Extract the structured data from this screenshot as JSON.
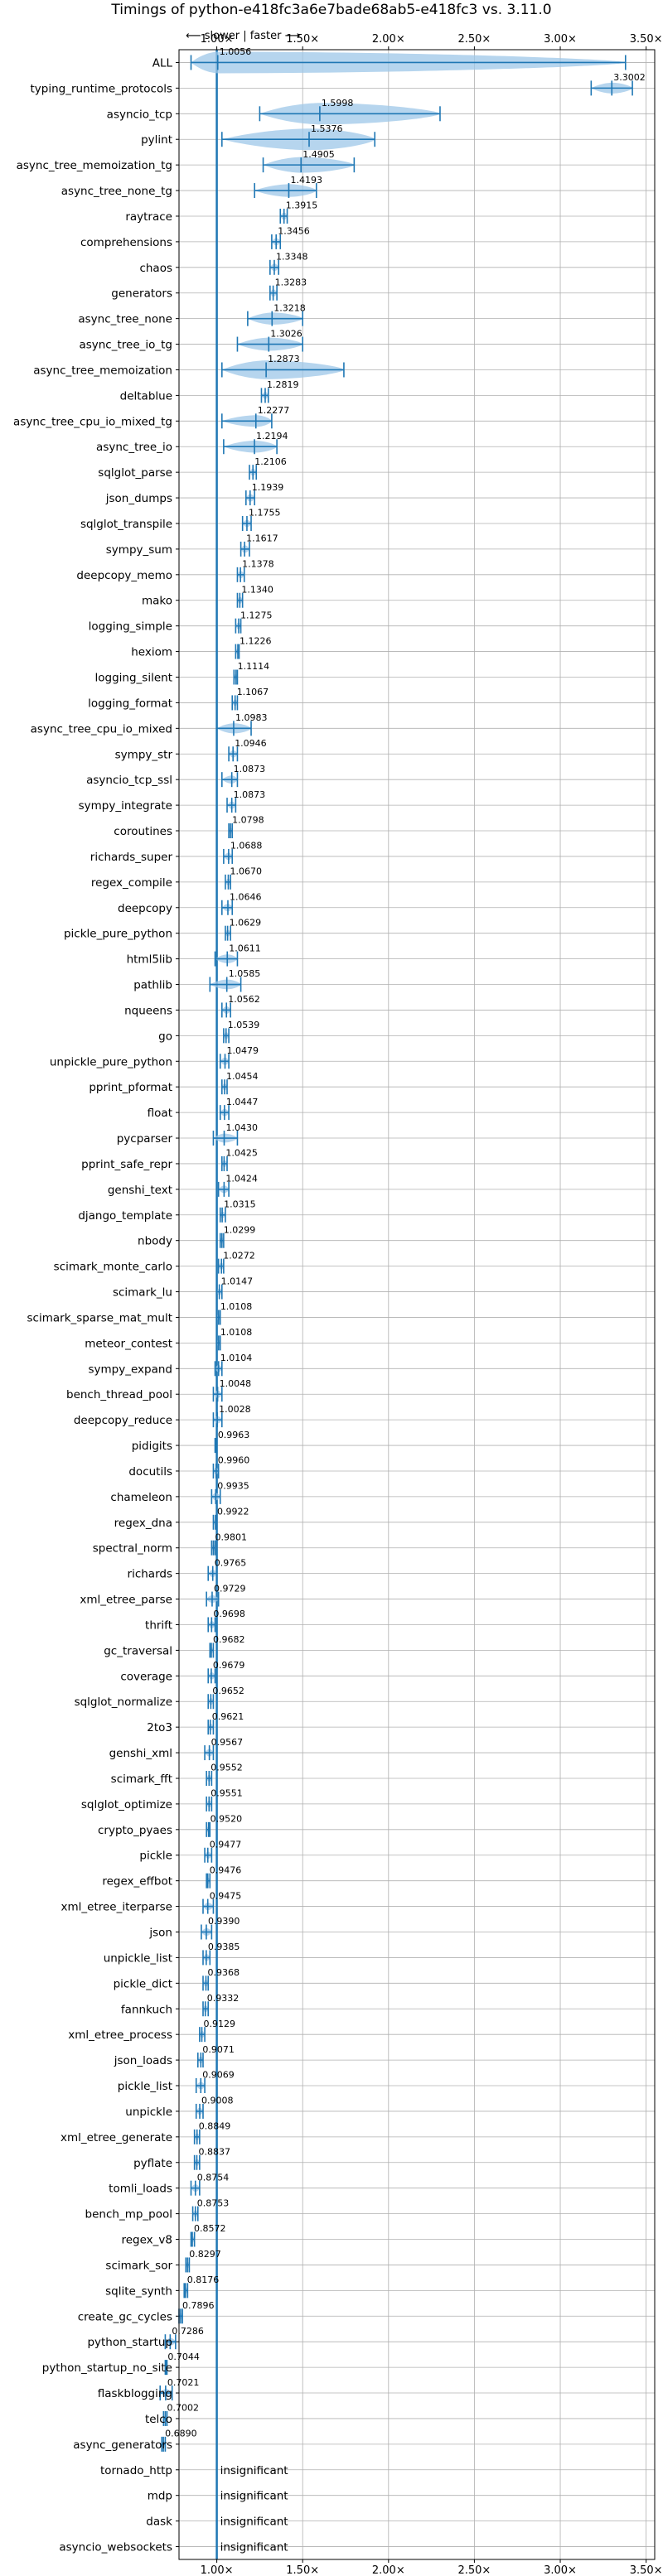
{
  "chart_data": {
    "type": "violin",
    "title": "Timings of python-e418fc3a6e7bade68ab5-e418fc3 vs. 3.11.0",
    "direction_hint": "⟵ slower | faster ⟶",
    "xlim": [
      0.78,
      3.55
    ],
    "x_ticks": [
      {
        "value": 1.0,
        "label": "1.00×"
      },
      {
        "value": 1.5,
        "label": "1.50×"
      },
      {
        "value": 2.0,
        "label": "2.00×"
      },
      {
        "value": 2.5,
        "label": "2.50×"
      },
      {
        "value": 3.0,
        "label": "3.00×"
      },
      {
        "value": 3.5,
        "label": "3.50×"
      }
    ],
    "reference_line": 1.0,
    "grid": true,
    "insignificant_label": "insignificant",
    "benchmarks": [
      {
        "name": "ALL",
        "value": 1.0056,
        "label": "1.0056",
        "low": 0.85,
        "high": 3.38
      },
      {
        "name": "typing_runtime_protocols",
        "value": 3.3002,
        "label": "3.3002",
        "low": 3.18,
        "high": 3.42
      },
      {
        "name": "asyncio_tcp",
        "value": 1.5998,
        "label": "1.5998",
        "low": 1.25,
        "high": 2.3
      },
      {
        "name": "pylint",
        "value": 1.5376,
        "label": "1.5376",
        "low": 1.03,
        "high": 1.92
      },
      {
        "name": "async_tree_memoization_tg",
        "value": 1.4905,
        "label": "1.4905",
        "low": 1.27,
        "high": 1.8
      },
      {
        "name": "async_tree_none_tg",
        "value": 1.4193,
        "label": "1.4193",
        "low": 1.22,
        "high": 1.58
      },
      {
        "name": "raytrace",
        "value": 1.3915,
        "label": "1.3915",
        "low": 1.37,
        "high": 1.41
      },
      {
        "name": "comprehensions",
        "value": 1.3456,
        "label": "1.3456",
        "low": 1.32,
        "high": 1.37
      },
      {
        "name": "chaos",
        "value": 1.3348,
        "label": "1.3348",
        "low": 1.31,
        "high": 1.36
      },
      {
        "name": "generators",
        "value": 1.3283,
        "label": "1.3283",
        "low": 1.31,
        "high": 1.35
      },
      {
        "name": "async_tree_none",
        "value": 1.3218,
        "label": "1.3218",
        "low": 1.18,
        "high": 1.5
      },
      {
        "name": "async_tree_io_tg",
        "value": 1.3026,
        "label": "1.3026",
        "low": 1.12,
        "high": 1.5
      },
      {
        "name": "async_tree_memoization",
        "value": 1.2873,
        "label": "1.2873",
        "low": 1.03,
        "high": 1.74
      },
      {
        "name": "deltablue",
        "value": 1.2819,
        "label": "1.2819",
        "low": 1.26,
        "high": 1.3
      },
      {
        "name": "async_tree_cpu_io_mixed_tg",
        "value": 1.2277,
        "label": "1.2277",
        "low": 1.03,
        "high": 1.32
      },
      {
        "name": "async_tree_io",
        "value": 1.2194,
        "label": "1.2194",
        "low": 1.04,
        "high": 1.35
      },
      {
        "name": "sqlglot_parse",
        "value": 1.2106,
        "label": "1.2106",
        "low": 1.19,
        "high": 1.23
      },
      {
        "name": "json_dumps",
        "value": 1.1939,
        "label": "1.1939",
        "low": 1.17,
        "high": 1.22
      },
      {
        "name": "sqlglot_transpile",
        "value": 1.1755,
        "label": "1.1755",
        "low": 1.15,
        "high": 1.2
      },
      {
        "name": "sympy_sum",
        "value": 1.1617,
        "label": "1.1617",
        "low": 1.14,
        "high": 1.19
      },
      {
        "name": "deepcopy_memo",
        "value": 1.1378,
        "label": "1.1378",
        "low": 1.12,
        "high": 1.16
      },
      {
        "name": "mako",
        "value": 1.134,
        "label": "1.1340",
        "low": 1.12,
        "high": 1.15
      },
      {
        "name": "logging_simple",
        "value": 1.1275,
        "label": "1.1275",
        "low": 1.11,
        "high": 1.14
      },
      {
        "name": "hexiom",
        "value": 1.1226,
        "label": "1.1226",
        "low": 1.11,
        "high": 1.13
      },
      {
        "name": "logging_silent",
        "value": 1.1114,
        "label": "1.1114",
        "low": 1.1,
        "high": 1.12
      },
      {
        "name": "logging_format",
        "value": 1.1067,
        "label": "1.1067",
        "low": 1.09,
        "high": 1.12
      },
      {
        "name": "async_tree_cpu_io_mixed",
        "value": 1.0983,
        "label": "1.0983",
        "low": 1.0,
        "high": 1.2
      },
      {
        "name": "sympy_str",
        "value": 1.0946,
        "label": "1.0946",
        "low": 1.07,
        "high": 1.12
      },
      {
        "name": "asyncio_tcp_ssl",
        "value": 1.0873,
        "label": "1.0873",
        "low": 1.03,
        "high": 1.12
      },
      {
        "name": "sympy_integrate",
        "value": 1.0873,
        "label": "1.0873",
        "low": 1.06,
        "high": 1.11
      },
      {
        "name": "coroutines",
        "value": 1.0798,
        "label": "1.0798",
        "low": 1.07,
        "high": 1.09
      },
      {
        "name": "richards_super",
        "value": 1.0688,
        "label": "1.0688",
        "low": 1.04,
        "high": 1.09
      },
      {
        "name": "regex_compile",
        "value": 1.067,
        "label": "1.0670",
        "low": 1.05,
        "high": 1.08
      },
      {
        "name": "deepcopy",
        "value": 1.0646,
        "label": "1.0646",
        "low": 1.03,
        "high": 1.09
      },
      {
        "name": "pickle_pure_python",
        "value": 1.0629,
        "label": "1.0629",
        "low": 1.05,
        "high": 1.08
      },
      {
        "name": "html5lib",
        "value": 1.0611,
        "label": "1.0611",
        "low": 0.99,
        "high": 1.12
      },
      {
        "name": "pathlib",
        "value": 1.0585,
        "label": "1.0585",
        "low": 0.96,
        "high": 1.14
      },
      {
        "name": "nqueens",
        "value": 1.0562,
        "label": "1.0562",
        "low": 1.03,
        "high": 1.08
      },
      {
        "name": "go",
        "value": 1.0539,
        "label": "1.0539",
        "low": 1.04,
        "high": 1.07
      },
      {
        "name": "unpickle_pure_python",
        "value": 1.0479,
        "label": "1.0479",
        "low": 1.02,
        "high": 1.07
      },
      {
        "name": "pprint_pformat",
        "value": 1.0454,
        "label": "1.0454",
        "low": 1.03,
        "high": 1.06
      },
      {
        "name": "float",
        "value": 1.0447,
        "label": "1.0447",
        "low": 1.02,
        "high": 1.07
      },
      {
        "name": "pycparser",
        "value": 1.043,
        "label": "1.0430",
        "low": 0.98,
        "high": 1.12
      },
      {
        "name": "pprint_safe_repr",
        "value": 1.0425,
        "label": "1.0425",
        "low": 1.03,
        "high": 1.06
      },
      {
        "name": "genshi_text",
        "value": 1.0424,
        "label": "1.0424",
        "low": 1.01,
        "high": 1.07
      },
      {
        "name": "django_template",
        "value": 1.0315,
        "label": "1.0315",
        "low": 1.02,
        "high": 1.05
      },
      {
        "name": "nbody",
        "value": 1.0299,
        "label": "1.0299",
        "low": 1.02,
        "high": 1.04
      },
      {
        "name": "scimark_monte_carlo",
        "value": 1.0272,
        "label": "1.0272",
        "low": 1.01,
        "high": 1.04
      },
      {
        "name": "scimark_lu",
        "value": 1.0147,
        "label": "1.0147",
        "low": 1.0,
        "high": 1.03
      },
      {
        "name": "scimark_sparse_mat_mult",
        "value": 1.0108,
        "label": "1.0108",
        "low": 1.0,
        "high": 1.02
      },
      {
        "name": "meteor_contest",
        "value": 1.0108,
        "label": "1.0108",
        "low": 1.0,
        "high": 1.02
      },
      {
        "name": "sympy_expand",
        "value": 1.0104,
        "label": "1.0104",
        "low": 0.99,
        "high": 1.03
      },
      {
        "name": "bench_thread_pool",
        "value": 1.0048,
        "label": "1.0048",
        "low": 0.98,
        "high": 1.03
      },
      {
        "name": "deepcopy_reduce",
        "value": 1.0028,
        "label": "1.0028",
        "low": 0.98,
        "high": 1.03
      },
      {
        "name": "pidigits",
        "value": 0.9963,
        "label": "0.9963",
        "low": 0.99,
        "high": 1.0
      },
      {
        "name": "docutils",
        "value": 0.996,
        "label": "0.9960",
        "low": 0.98,
        "high": 1.01
      },
      {
        "name": "chameleon",
        "value": 0.9935,
        "label": "0.9935",
        "low": 0.97,
        "high": 1.02
      },
      {
        "name": "regex_dna",
        "value": 0.9922,
        "label": "0.9922",
        "low": 0.98,
        "high": 1.0
      },
      {
        "name": "spectral_norm",
        "value": 0.9801,
        "label": "0.9801",
        "low": 0.97,
        "high": 0.99
      },
      {
        "name": "richards",
        "value": 0.9765,
        "label": "0.9765",
        "low": 0.95,
        "high": 1.0
      },
      {
        "name": "xml_etree_parse",
        "value": 0.9729,
        "label": "0.9729",
        "low": 0.94,
        "high": 1.01
      },
      {
        "name": "thrift",
        "value": 0.9698,
        "label": "0.9698",
        "low": 0.95,
        "high": 0.99
      },
      {
        "name": "gc_traversal",
        "value": 0.9682,
        "label": "0.9682",
        "low": 0.96,
        "high": 0.98
      },
      {
        "name": "coverage",
        "value": 0.9679,
        "label": "0.9679",
        "low": 0.95,
        "high": 0.99
      },
      {
        "name": "sqlglot_normalize",
        "value": 0.9652,
        "label": "0.9652",
        "low": 0.95,
        "high": 0.98
      },
      {
        "name": "2to3",
        "value": 0.9621,
        "label": "0.9621",
        "low": 0.95,
        "high": 0.98
      },
      {
        "name": "genshi_xml",
        "value": 0.9567,
        "label": "0.9567",
        "low": 0.93,
        "high": 0.98
      },
      {
        "name": "scimark_fft",
        "value": 0.9552,
        "label": "0.9552",
        "low": 0.94,
        "high": 0.97
      },
      {
        "name": "sqlglot_optimize",
        "value": 0.9551,
        "label": "0.9551",
        "low": 0.94,
        "high": 0.97
      },
      {
        "name": "crypto_pyaes",
        "value": 0.952,
        "label": "0.9520",
        "low": 0.94,
        "high": 0.96
      },
      {
        "name": "pickle",
        "value": 0.9477,
        "label": "0.9477",
        "low": 0.93,
        "high": 0.97
      },
      {
        "name": "regex_effbot",
        "value": 0.9476,
        "label": "0.9476",
        "low": 0.94,
        "high": 0.96
      },
      {
        "name": "xml_etree_iterparse",
        "value": 0.9475,
        "label": "0.9475",
        "low": 0.92,
        "high": 0.98
      },
      {
        "name": "json",
        "value": 0.939,
        "label": "0.9390",
        "low": 0.91,
        "high": 0.97
      },
      {
        "name": "unpickle_list",
        "value": 0.9385,
        "label": "0.9385",
        "low": 0.92,
        "high": 0.96
      },
      {
        "name": "pickle_dict",
        "value": 0.9368,
        "label": "0.9368",
        "low": 0.92,
        "high": 0.95
      },
      {
        "name": "fannkuch",
        "value": 0.9332,
        "label": "0.9332",
        "low": 0.92,
        "high": 0.95
      },
      {
        "name": "xml_etree_process",
        "value": 0.9129,
        "label": "0.9129",
        "low": 0.9,
        "high": 0.93
      },
      {
        "name": "json_loads",
        "value": 0.9071,
        "label": "0.9071",
        "low": 0.89,
        "high": 0.92
      },
      {
        "name": "pickle_list",
        "value": 0.9069,
        "label": "0.9069",
        "low": 0.88,
        "high": 0.93
      },
      {
        "name": "unpickle",
        "value": 0.9008,
        "label": "0.9008",
        "low": 0.88,
        "high": 0.92
      },
      {
        "name": "xml_etree_generate",
        "value": 0.8849,
        "label": "0.8849",
        "low": 0.87,
        "high": 0.9
      },
      {
        "name": "pyflate",
        "value": 0.8837,
        "label": "0.8837",
        "low": 0.87,
        "high": 0.9
      },
      {
        "name": "tomli_loads",
        "value": 0.8754,
        "label": "0.8754",
        "low": 0.85,
        "high": 0.9
      },
      {
        "name": "bench_mp_pool",
        "value": 0.8753,
        "label": "0.8753",
        "low": 0.86,
        "high": 0.89
      },
      {
        "name": "regex_v8",
        "value": 0.8572,
        "label": "0.8572",
        "low": 0.85,
        "high": 0.87
      },
      {
        "name": "scimark_sor",
        "value": 0.8297,
        "label": "0.8297",
        "low": 0.82,
        "high": 0.84
      },
      {
        "name": "sqlite_synth",
        "value": 0.8176,
        "label": "0.8176",
        "low": 0.81,
        "high": 0.83
      },
      {
        "name": "create_gc_cycles",
        "value": 0.7896,
        "label": "0.7896",
        "low": 0.78,
        "high": 0.8
      },
      {
        "name": "python_startup",
        "value": 0.7286,
        "label": "0.7286",
        "low": 0.7,
        "high": 0.76
      },
      {
        "name": "python_startup_no_site",
        "value": 0.7044,
        "label": "0.7044",
        "low": 0.7,
        "high": 0.71
      },
      {
        "name": "flaskblogging",
        "value": 0.7021,
        "label": "0.7021",
        "low": 0.67,
        "high": 0.74
      },
      {
        "name": "telco",
        "value": 0.7002,
        "label": "0.7002",
        "low": 0.69,
        "high": 0.71
      },
      {
        "name": "async_generators",
        "value": 0.689,
        "label": "0.6890",
        "low": 0.68,
        "high": 0.7
      },
      {
        "name": "tornado_http",
        "insignificant": true
      },
      {
        "name": "mdp",
        "insignificant": true
      },
      {
        "name": "dask",
        "insignificant": true
      },
      {
        "name": "asyncio_websockets",
        "insignificant": true
      }
    ],
    "colors": {
      "violin": "#9ec7e8",
      "bar": "#1f77b4",
      "grid": "#b0b0b0",
      "axis": "#000000"
    }
  }
}
